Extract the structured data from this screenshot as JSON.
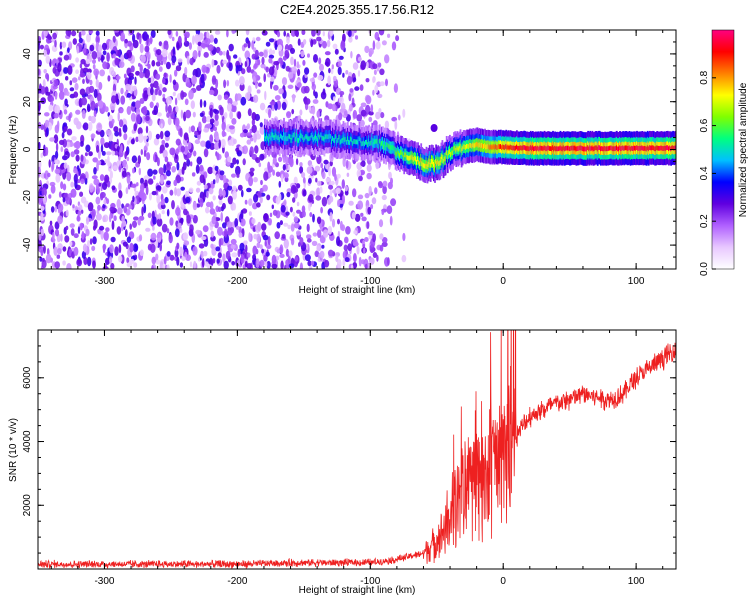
{
  "chart_data": [
    {
      "type": "heatmap",
      "title": "C2E4.2025.355.17.56.R12",
      "xlabel": "Height of straight line (km)",
      "ylabel": "Frequency (Hz)",
      "xlim": [
        -350,
        130
      ],
      "ylim": [
        -50,
        50
      ],
      "xticks": [
        -300,
        -200,
        -100,
        0,
        100
      ],
      "yticks": [
        -40,
        -20,
        0,
        20,
        40
      ],
      "colorbar": {
        "label": "Normalized spectral amplitude",
        "range": [
          0,
          1
        ],
        "ticks": [
          0.0,
          0.2,
          0.4,
          0.6,
          0.8
        ],
        "colors": [
          "#ffffff",
          "#e8c8ff",
          "#b060ff",
          "#6000e0",
          "#0000ff",
          "#00c0ff",
          "#00ff80",
          "#80ff00",
          "#ffff00",
          "#ff8000",
          "#ff0000",
          "#ff0080"
        ]
      },
      "ridge": {
        "x": [
          -180,
          -160,
          -140,
          -120,
          -100,
          -90,
          -80,
          -70,
          -60,
          -50,
          -40,
          -30,
          -20,
          -10,
          0,
          20,
          50,
          100,
          130
        ],
        "freq": [
          5,
          5,
          5,
          4,
          3,
          2,
          -1,
          -4,
          -6,
          -6,
          -1,
          1,
          2,
          1,
          1,
          0.5,
          0.5,
          0.5,
          0.5
        ],
        "amplitude": [
          0.5,
          0.5,
          0.5,
          0.5,
          0.5,
          0.55,
          0.6,
          0.7,
          0.75,
          0.75,
          0.65,
          0.7,
          0.75,
          0.8,
          0.9,
          0.95,
          0.95,
          0.95,
          0.95
        ]
      }
    },
    {
      "type": "line",
      "xlabel": "Height of straight line (km)",
      "ylabel": "SNR (10 * v/v)",
      "xlim": [
        -350,
        130
      ],
      "ylim": [
        0,
        7500
      ],
      "xticks": [
        -300,
        -200,
        -100,
        0,
        100
      ],
      "yticks": [
        2000,
        4000,
        6000
      ],
      "color": "#ee2020",
      "series": [
        {
          "name": "SNR",
          "x": [
            -350,
            -300,
            -250,
            -200,
            -150,
            -100,
            -80,
            -60,
            -50,
            -40,
            -30,
            -20,
            -10,
            0,
            10,
            20,
            30,
            40,
            50,
            60,
            70,
            80,
            90,
            100,
            110,
            120,
            130
          ],
          "values": [
            150,
            150,
            150,
            150,
            200,
            200,
            300,
            500,
            900,
            1600,
            2500,
            3000,
            3200,
            3500,
            4200,
            4800,
            5000,
            5200,
            5300,
            5500,
            5400,
            5300,
            5500,
            6000,
            6300,
            6600,
            6900
          ]
        }
      ]
    }
  ]
}
